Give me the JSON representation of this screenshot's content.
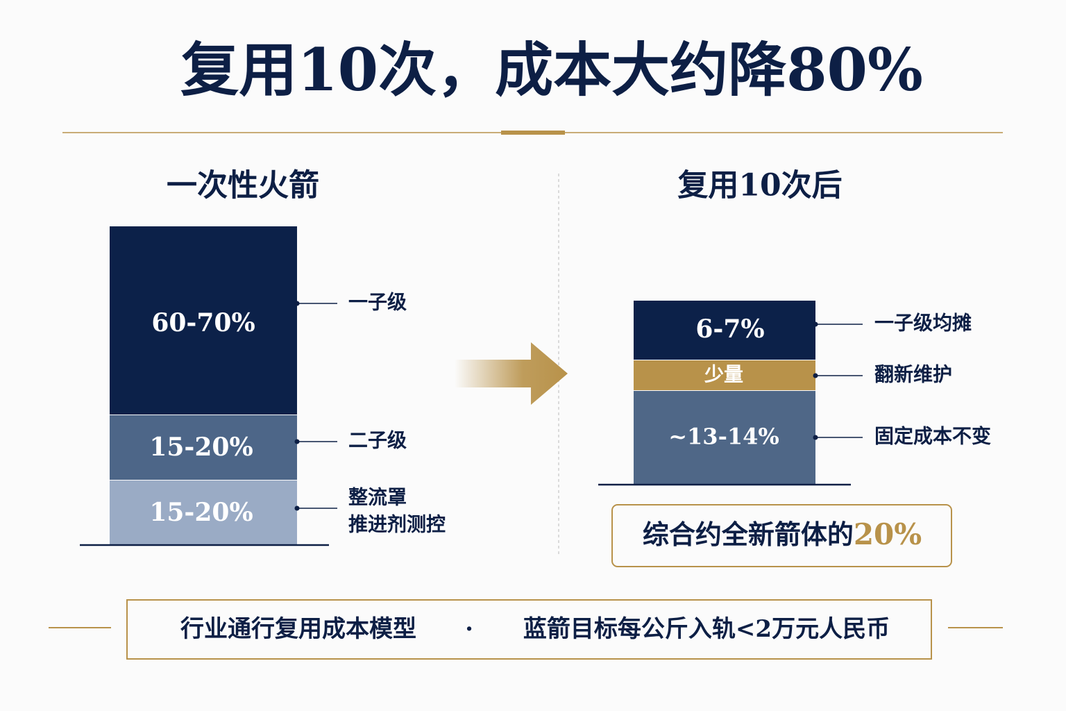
{
  "header": {
    "title": "复用10次，成本大约降80%"
  },
  "left": {
    "heading": "一次性火箭",
    "segments": [
      {
        "value_label": "60-70%",
        "label": "一子级"
      },
      {
        "value_label": "15-20%",
        "label": "二子级"
      },
      {
        "value_label": "15-20%",
        "label_lines": [
          "整流罩",
          "推进剂测控"
        ]
      }
    ]
  },
  "right": {
    "heading": "复用10次后",
    "segments": [
      {
        "value_label": "6-7%",
        "label": "一子级均摊"
      },
      {
        "value_label": "少量",
        "label": "翻新维护"
      },
      {
        "value_label": "~13-14%",
        "label": "固定成本不变"
      }
    ],
    "summary": {
      "text": "综合约全新箭体的",
      "highlight": "20%"
    }
  },
  "footer": {
    "left": "行业通行复用成本模型",
    "separator": "·",
    "right": "蓝箭目标每公斤入轨<2万元人民币"
  }
}
